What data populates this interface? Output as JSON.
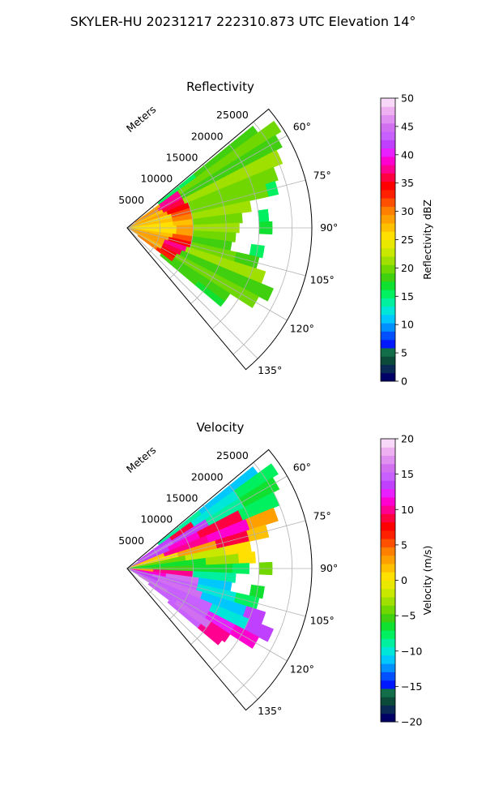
{
  "figure": {
    "suptitle": "SKYLER-HU  20231217  222310.873 UTC Elevation 14°"
  },
  "chart_data": [
    {
      "type": "heatmap",
      "subtype": "polar-sector-radar",
      "title": "Reflectivity",
      "radial_label": "Meters",
      "radial_ticks": [
        5000,
        10000,
        15000,
        20000,
        25000
      ],
      "radial_tick_labels": [
        "5000",
        "10000",
        "15000",
        "20000",
        "25000"
      ],
      "r_range": [
        0,
        28000
      ],
      "azimuth_range_deg": [
        50,
        140
      ],
      "azimuth_ticks_deg": [
        60,
        75,
        90,
        105,
        120,
        135
      ],
      "azimuth_tick_labels": [
        "60°",
        "75°",
        "90°",
        "105°",
        "120°",
        "135°"
      ],
      "grid": true,
      "colorbar": {
        "label": "Reflectivity dBZ",
        "range": [
          0,
          50
        ],
        "ticks": [
          0,
          5,
          10,
          15,
          20,
          25,
          30,
          35,
          40,
          45,
          50
        ],
        "tick_labels": [
          "0",
          "5",
          "10",
          "15",
          "20",
          "25",
          "30",
          "35",
          "40",
          "45",
          "50"
        ],
        "colors": [
          "#000066",
          "#0a2a55",
          "#0c4a3a",
          "#126e48",
          "#0018ff",
          "#0050ff",
          "#0090ff",
          "#00c8ff",
          "#00e6d8",
          "#00f0a0",
          "#00f060",
          "#10e030",
          "#40d010",
          "#70d800",
          "#a0e000",
          "#c8e800",
          "#e8e800",
          "#ffe000",
          "#ffc000",
          "#ffa000",
          "#ff8000",
          "#ff5000",
          "#ff2000",
          "#ff0000",
          "#ff0040",
          "#ff0090",
          "#ff00d0",
          "#e820ff",
          "#c040ff",
          "#c860ff",
          "#d070f0",
          "#e090f0",
          "#eeb0f0",
          "#f8d8f8"
        ]
      },
      "rays": [
        {
          "az": 52,
          "bins": [
            [
              6000,
              13000,
              15
            ],
            [
              13000,
              24500,
              18
            ]
          ]
        },
        {
          "az": 56,
          "bins": [
            [
              1500,
              6000,
              28
            ],
            [
              6000,
              9500,
              38
            ],
            [
              9500,
              27500,
              20
            ]
          ]
        },
        {
          "az": 60,
          "bins": [
            [
              1000,
              5500,
              30
            ],
            [
              5500,
              9500,
              38
            ],
            [
              9500,
              26500,
              19
            ]
          ]
        },
        {
          "az": 65,
          "bins": [
            [
              500,
              6000,
              27
            ],
            [
              6000,
              9500,
              36
            ],
            [
              9500,
              25500,
              21
            ]
          ]
        },
        {
          "az": 70,
          "bins": [
            [
              0,
              6500,
              29
            ],
            [
              6500,
              10000,
              35
            ],
            [
              10000,
              24000,
              20
            ]
          ]
        },
        {
          "az": 75,
          "bins": [
            [
              0,
              7000,
              26
            ],
            [
              7000,
              10000,
              32
            ],
            [
              10000,
              22000,
              20
            ],
            [
              22000,
              23500,
              16
            ]
          ]
        },
        {
          "az": 80,
          "bins": [
            [
              0,
              7000,
              27
            ],
            [
              7000,
              10000,
              30
            ],
            [
              10000,
              19000,
              21
            ]
          ]
        },
        {
          "az": 85,
          "bins": [
            [
              0,
              7000,
              26
            ],
            [
              7000,
              10000,
              27
            ],
            [
              10000,
              17500,
              20
            ],
            [
              20000,
              21500,
              16
            ]
          ]
        },
        {
          "az": 90,
          "bins": [
            [
              0,
              7500,
              26
            ],
            [
              7500,
              10000,
              28
            ],
            [
              10000,
              17000,
              21
            ],
            [
              20000,
              22000,
              17
            ]
          ]
        },
        {
          "az": 95,
          "bins": [
            [
              0,
              7500,
              26
            ],
            [
              7500,
              10000,
              29
            ],
            [
              10000,
              16500,
              20
            ]
          ]
        },
        {
          "az": 100,
          "bins": [
            [
              0,
              7000,
              27
            ],
            [
              7000,
              10000,
              31
            ],
            [
              10000,
              16000,
              19
            ],
            [
              19000,
              21000,
              16
            ]
          ]
        },
        {
          "az": 105,
          "bins": [
            [
              0,
              6500,
              28
            ],
            [
              6500,
              10000,
              34
            ],
            [
              10000,
              17000,
              20
            ],
            [
              17000,
              20500,
              18
            ]
          ]
        },
        {
          "az": 110,
          "bins": [
            [
              0,
              6000,
              29
            ],
            [
              6000,
              9500,
              37
            ],
            [
              9500,
              22000,
              21
            ]
          ]
        },
        {
          "az": 115,
          "bins": [
            [
              500,
              6000,
              28
            ],
            [
              6000,
              9000,
              36
            ],
            [
              9000,
              24000,
              19
            ]
          ]
        },
        {
          "az": 120,
          "bins": [
            [
              1000,
              6000,
              27
            ],
            [
              6000,
              8500,
              35
            ],
            [
              8500,
              22500,
              20
            ]
          ]
        },
        {
          "az": 125,
          "bins": [
            [
              2000,
              5500,
              30
            ],
            [
              5500,
              8500,
              33
            ],
            [
              8500,
              18500,
              18
            ]
          ]
        },
        {
          "az": 129,
          "bins": [
            [
              6500,
              13500,
              19
            ],
            [
              13500,
              18500,
              17
            ]
          ]
        }
      ]
    },
    {
      "type": "heatmap",
      "subtype": "polar-sector-radar",
      "title": "Velocity",
      "radial_label": "Meters",
      "radial_ticks": [
        5000,
        10000,
        15000,
        20000,
        25000
      ],
      "radial_tick_labels": [
        "5000",
        "10000",
        "15000",
        "20000",
        "25000"
      ],
      "r_range": [
        0,
        28000
      ],
      "azimuth_range_deg": [
        50,
        140
      ],
      "azimuth_ticks_deg": [
        60,
        75,
        90,
        105,
        120,
        135
      ],
      "azimuth_tick_labels": [
        "60°",
        "75°",
        "90°",
        "105°",
        "120°",
        "135°"
      ],
      "grid": true,
      "colorbar": {
        "label": "Velocity (m/s)",
        "range": [
          -20,
          20
        ],
        "ticks": [
          -20,
          -15,
          -10,
          -5,
          0,
          5,
          10,
          15,
          20
        ],
        "tick_labels": [
          "−20",
          "−15",
          "−10",
          "−5",
          "0",
          "5",
          "10",
          "15",
          "20"
        ],
        "colors": [
          "#000066",
          "#0a2a55",
          "#0c4a3a",
          "#126e48",
          "#0018ff",
          "#0050ff",
          "#0090ff",
          "#00c8ff",
          "#00e6d8",
          "#00f0a0",
          "#00f060",
          "#10e030",
          "#40d010",
          "#70d800",
          "#a0e000",
          "#c8e800",
          "#e8e800",
          "#ffe000",
          "#ffc000",
          "#ffa000",
          "#ff8000",
          "#ff5000",
          "#ff2000",
          "#ff0000",
          "#ff0040",
          "#ff0090",
          "#ff00d0",
          "#e820ff",
          "#c040ff",
          "#c860ff",
          "#d070f0",
          "#e090f0",
          "#eeb0f0",
          "#f8d8f8"
        ]
      },
      "rays": [
        {
          "az": 52,
          "bins": [
            [
              6000,
              14000,
              -9
            ],
            [
              14000,
              24500,
              -11
            ]
          ]
        },
        {
          "az": 56,
          "bins": [
            [
              2000,
              8000,
              14
            ],
            [
              8000,
              12000,
              9
            ],
            [
              12000,
              20000,
              -10
            ],
            [
              20000,
              27000,
              -8
            ]
          ]
        },
        {
          "az": 60,
          "bins": [
            [
              1000,
              8000,
              15
            ],
            [
              8000,
              14000,
              13
            ],
            [
              14000,
              20000,
              -9
            ],
            [
              20000,
              26000,
              -7
            ]
          ]
        },
        {
          "az": 65,
          "bins": [
            [
              500,
              7000,
              14
            ],
            [
              7000,
              12000,
              11
            ],
            [
              12000,
              19000,
              9
            ],
            [
              19000,
              25000,
              -8
            ]
          ]
        },
        {
          "az": 70,
          "bins": [
            [
              0,
              6000,
              2
            ],
            [
              6000,
              13000,
              10
            ],
            [
              13000,
              19500,
              11
            ],
            [
              19500,
              24000,
              3
            ]
          ]
        },
        {
          "az": 75,
          "bins": [
            [
              0,
              8000,
              0
            ],
            [
              8000,
              14000,
              3
            ],
            [
              14000,
              19000,
              9
            ],
            [
              19000,
              22000,
              2
            ]
          ]
        },
        {
          "az": 80,
          "bins": [
            [
              0,
              9000,
              -4
            ],
            [
              9000,
              15000,
              -2
            ],
            [
              15000,
              19000,
              1
            ]
          ]
        },
        {
          "az": 85,
          "bins": [
            [
              0,
              12000,
              -7
            ],
            [
              12000,
              17000,
              -3
            ],
            [
              17000,
              19500,
              0
            ]
          ]
        },
        {
          "az": 90,
          "bins": [
            [
              0,
              10000,
              -5
            ],
            [
              10000,
              16000,
              -6
            ],
            [
              16000,
              18500,
              -8
            ],
            [
              20000,
              22000,
              -4
            ]
          ]
        },
        {
          "az": 95,
          "bins": [
            [
              0,
              4000,
              3
            ],
            [
              4000,
              10000,
              10
            ],
            [
              10000,
              16500,
              -9
            ]
          ]
        },
        {
          "az": 100,
          "bins": [
            [
              0,
              6000,
              11
            ],
            [
              6000,
              11000,
              16
            ],
            [
              11000,
              16000,
              -11
            ],
            [
              19000,
              21000,
              -6
            ]
          ]
        },
        {
          "az": 105,
          "bins": [
            [
              0,
              4000,
              14
            ],
            [
              4000,
              11000,
              15
            ],
            [
              11000,
              17000,
              -10
            ],
            [
              17000,
              20500,
              -8
            ]
          ]
        },
        {
          "az": 110,
          "bins": [
            [
              500,
              5000,
              14
            ],
            [
              5000,
              12000,
              16
            ],
            [
              12000,
              19000,
              -11
            ],
            [
              19000,
              22000,
              14
            ]
          ]
        },
        {
          "az": 115,
          "bins": [
            [
              1000,
              6000,
              15
            ],
            [
              6000,
              14000,
              15
            ],
            [
              14000,
              20000,
              -10
            ],
            [
              20000,
              24000,
              14
            ]
          ]
        },
        {
          "az": 120,
          "bins": [
            [
              2000,
              7000,
              16
            ],
            [
              7000,
              14000,
              15
            ],
            [
              14000,
              18500,
              12
            ],
            [
              18500,
              22500,
              11
            ]
          ]
        },
        {
          "az": 125,
          "bins": [
            [
              4000,
              9000,
              15
            ],
            [
              9000,
              15000,
              16
            ],
            [
              15000,
              18500,
              10
            ]
          ]
        },
        {
          "az": 129,
          "bins": [
            [
              8000,
              14000,
              15
            ],
            [
              14000,
              18000,
              10
            ]
          ]
        }
      ]
    }
  ]
}
